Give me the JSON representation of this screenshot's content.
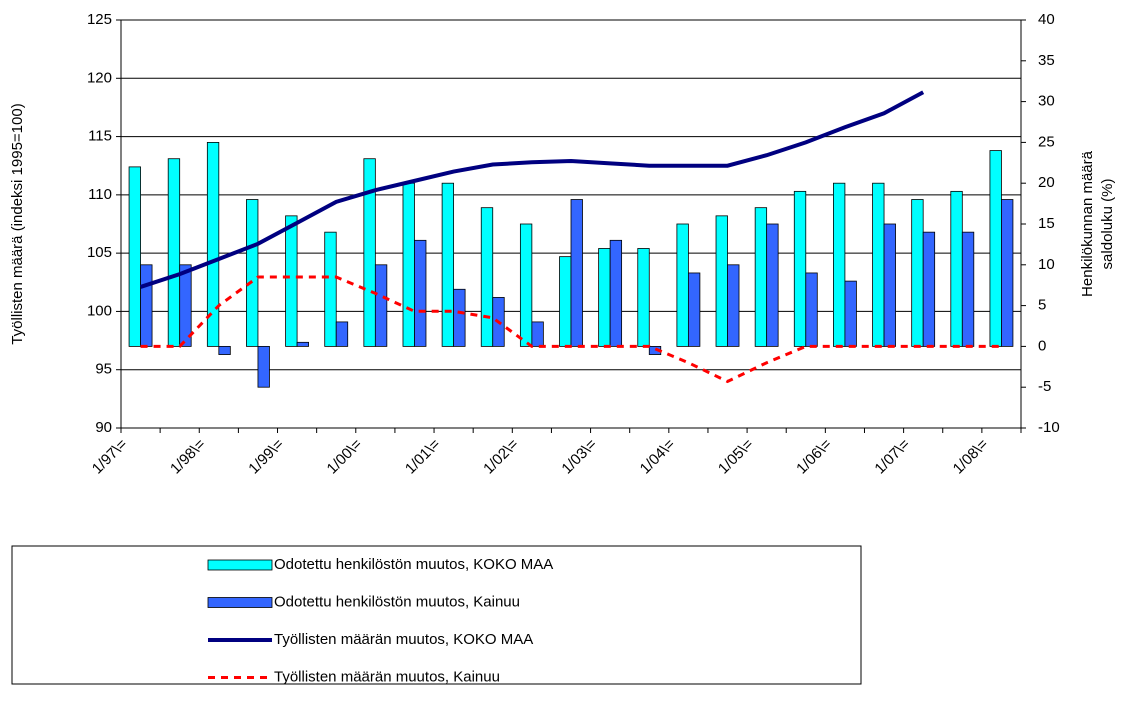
{
  "chart_data": {
    "type": "combo",
    "y_label": "Työllisten määrä (indeksi 1995=100)",
    "y2_label": [
      "Henkilökunnan määrä",
      "saldoluku (%)"
    ],
    "categories": [
      "1/97\\=",
      null,
      "1/98\\=",
      null,
      "1/99\\=",
      null,
      "1/00\\=",
      null,
      "1/01\\=",
      null,
      "1/02\\=",
      null,
      "1/03\\=",
      null,
      "1/04\\=",
      null,
      "1/05\\=",
      null,
      "1/06\\=",
      null,
      "1/07\\=",
      null,
      "1/08\\="
    ],
    "ylim": [
      90,
      125
    ],
    "yticks": [
      90,
      95,
      100,
      105,
      110,
      115,
      120,
      125
    ],
    "y2lim": [
      -10,
      40
    ],
    "y2ticks": [
      -10,
      -5,
      0,
      5,
      10,
      15,
      20,
      25,
      30,
      35,
      40
    ],
    "grid": true,
    "series": [
      {
        "name": "Odotettu henkilöstön muutos, KOKO MAA",
        "type": "bar",
        "axis": "y2",
        "color": "#00ffff",
        "values": [
          22,
          23,
          25,
          18,
          16,
          14,
          23,
          20,
          20,
          17,
          15,
          11,
          12,
          12,
          15,
          16,
          17,
          19,
          20,
          20,
          18,
          19,
          24
        ]
      },
      {
        "name": "Odotettu henkilöstön muutos, Kainuu",
        "type": "bar",
        "axis": "y2",
        "color": "#3366ff",
        "values": [
          10,
          10,
          -1,
          -5,
          0.5,
          3,
          10,
          13,
          7,
          6,
          3,
          18,
          13,
          -1,
          9,
          10,
          15,
          9,
          8,
          15,
          14,
          14,
          18
        ]
      },
      {
        "name": "Työllisten määrän muutos, KOKO MAA",
        "type": "line",
        "color": "#000080",
        "values": [
          102.1,
          103.2,
          104.5,
          105.8,
          107.6,
          109.4,
          110.4,
          111.2,
          112,
          112.6,
          112.8,
          112.9,
          112.7,
          112.5,
          112.5,
          112.5,
          113.4,
          114.5,
          115.8,
          117,
          118.8,
          null,
          null
        ]
      },
      {
        "name": "Työllisten määrän muutos, Kainuu",
        "type": "line",
        "axis": "y2",
        "color": "#ff0000",
        "dashed": true,
        "values": [
          0,
          0,
          5,
          8.5,
          8.5,
          8.5,
          6.5,
          4.3,
          4.3,
          3.5,
          0,
          0,
          0,
          0,
          -2,
          -4.3,
          -2,
          0,
          0,
          0,
          0,
          0,
          0
        ]
      }
    ]
  }
}
